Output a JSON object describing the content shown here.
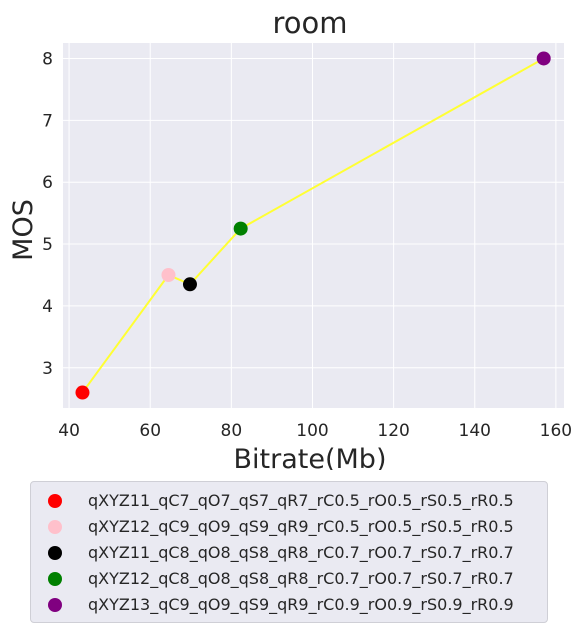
{
  "chart_data": {
    "type": "scatter",
    "title": "room",
    "xlabel": "Bitrate(Mb)",
    "ylabel": "MOS",
    "xlim": [
      38.5,
      162
    ],
    "ylim": [
      2.35,
      8.25
    ],
    "xticks": [
      40,
      60,
      80,
      100,
      120,
      140,
      160
    ],
    "yticks": [
      3,
      4,
      5,
      6,
      7,
      8
    ],
    "grid": true,
    "line_color": "#ffff33",
    "legend_position": "below",
    "series": [
      {
        "name": "qXYZ11_qC7_qO7_qS7_qR7_rC0.5_rO0.5_rS0.5_rR0.5",
        "color": "#ff0000",
        "x": 43.3,
        "y": 2.6
      },
      {
        "name": "qXYZ12_qC9_qO9_qS9_qR9_rC0.5_rO0.5_rS0.5_rR0.5",
        "color": "#ffc0cb",
        "x": 64.5,
        "y": 4.5
      },
      {
        "name": "qXYZ11_qC8_qO8_qS8_qR8_rC0.7_rO0.7_rS0.7_rR0.7",
        "color": "#000000",
        "x": 69.8,
        "y": 4.35
      },
      {
        "name": "qXYZ12_qC8_qO8_qS8_qR8_rC0.7_rO0.7_rS0.7_rR0.7",
        "color": "#008000",
        "x": 82.3,
        "y": 5.25
      },
      {
        "name": "qXYZ13_qC9_qO9_qS9_qR9_rC0.9_rO0.9_rS0.9_rR0.9",
        "color": "#800080",
        "x": 157.0,
        "y": 8.0
      }
    ]
  }
}
